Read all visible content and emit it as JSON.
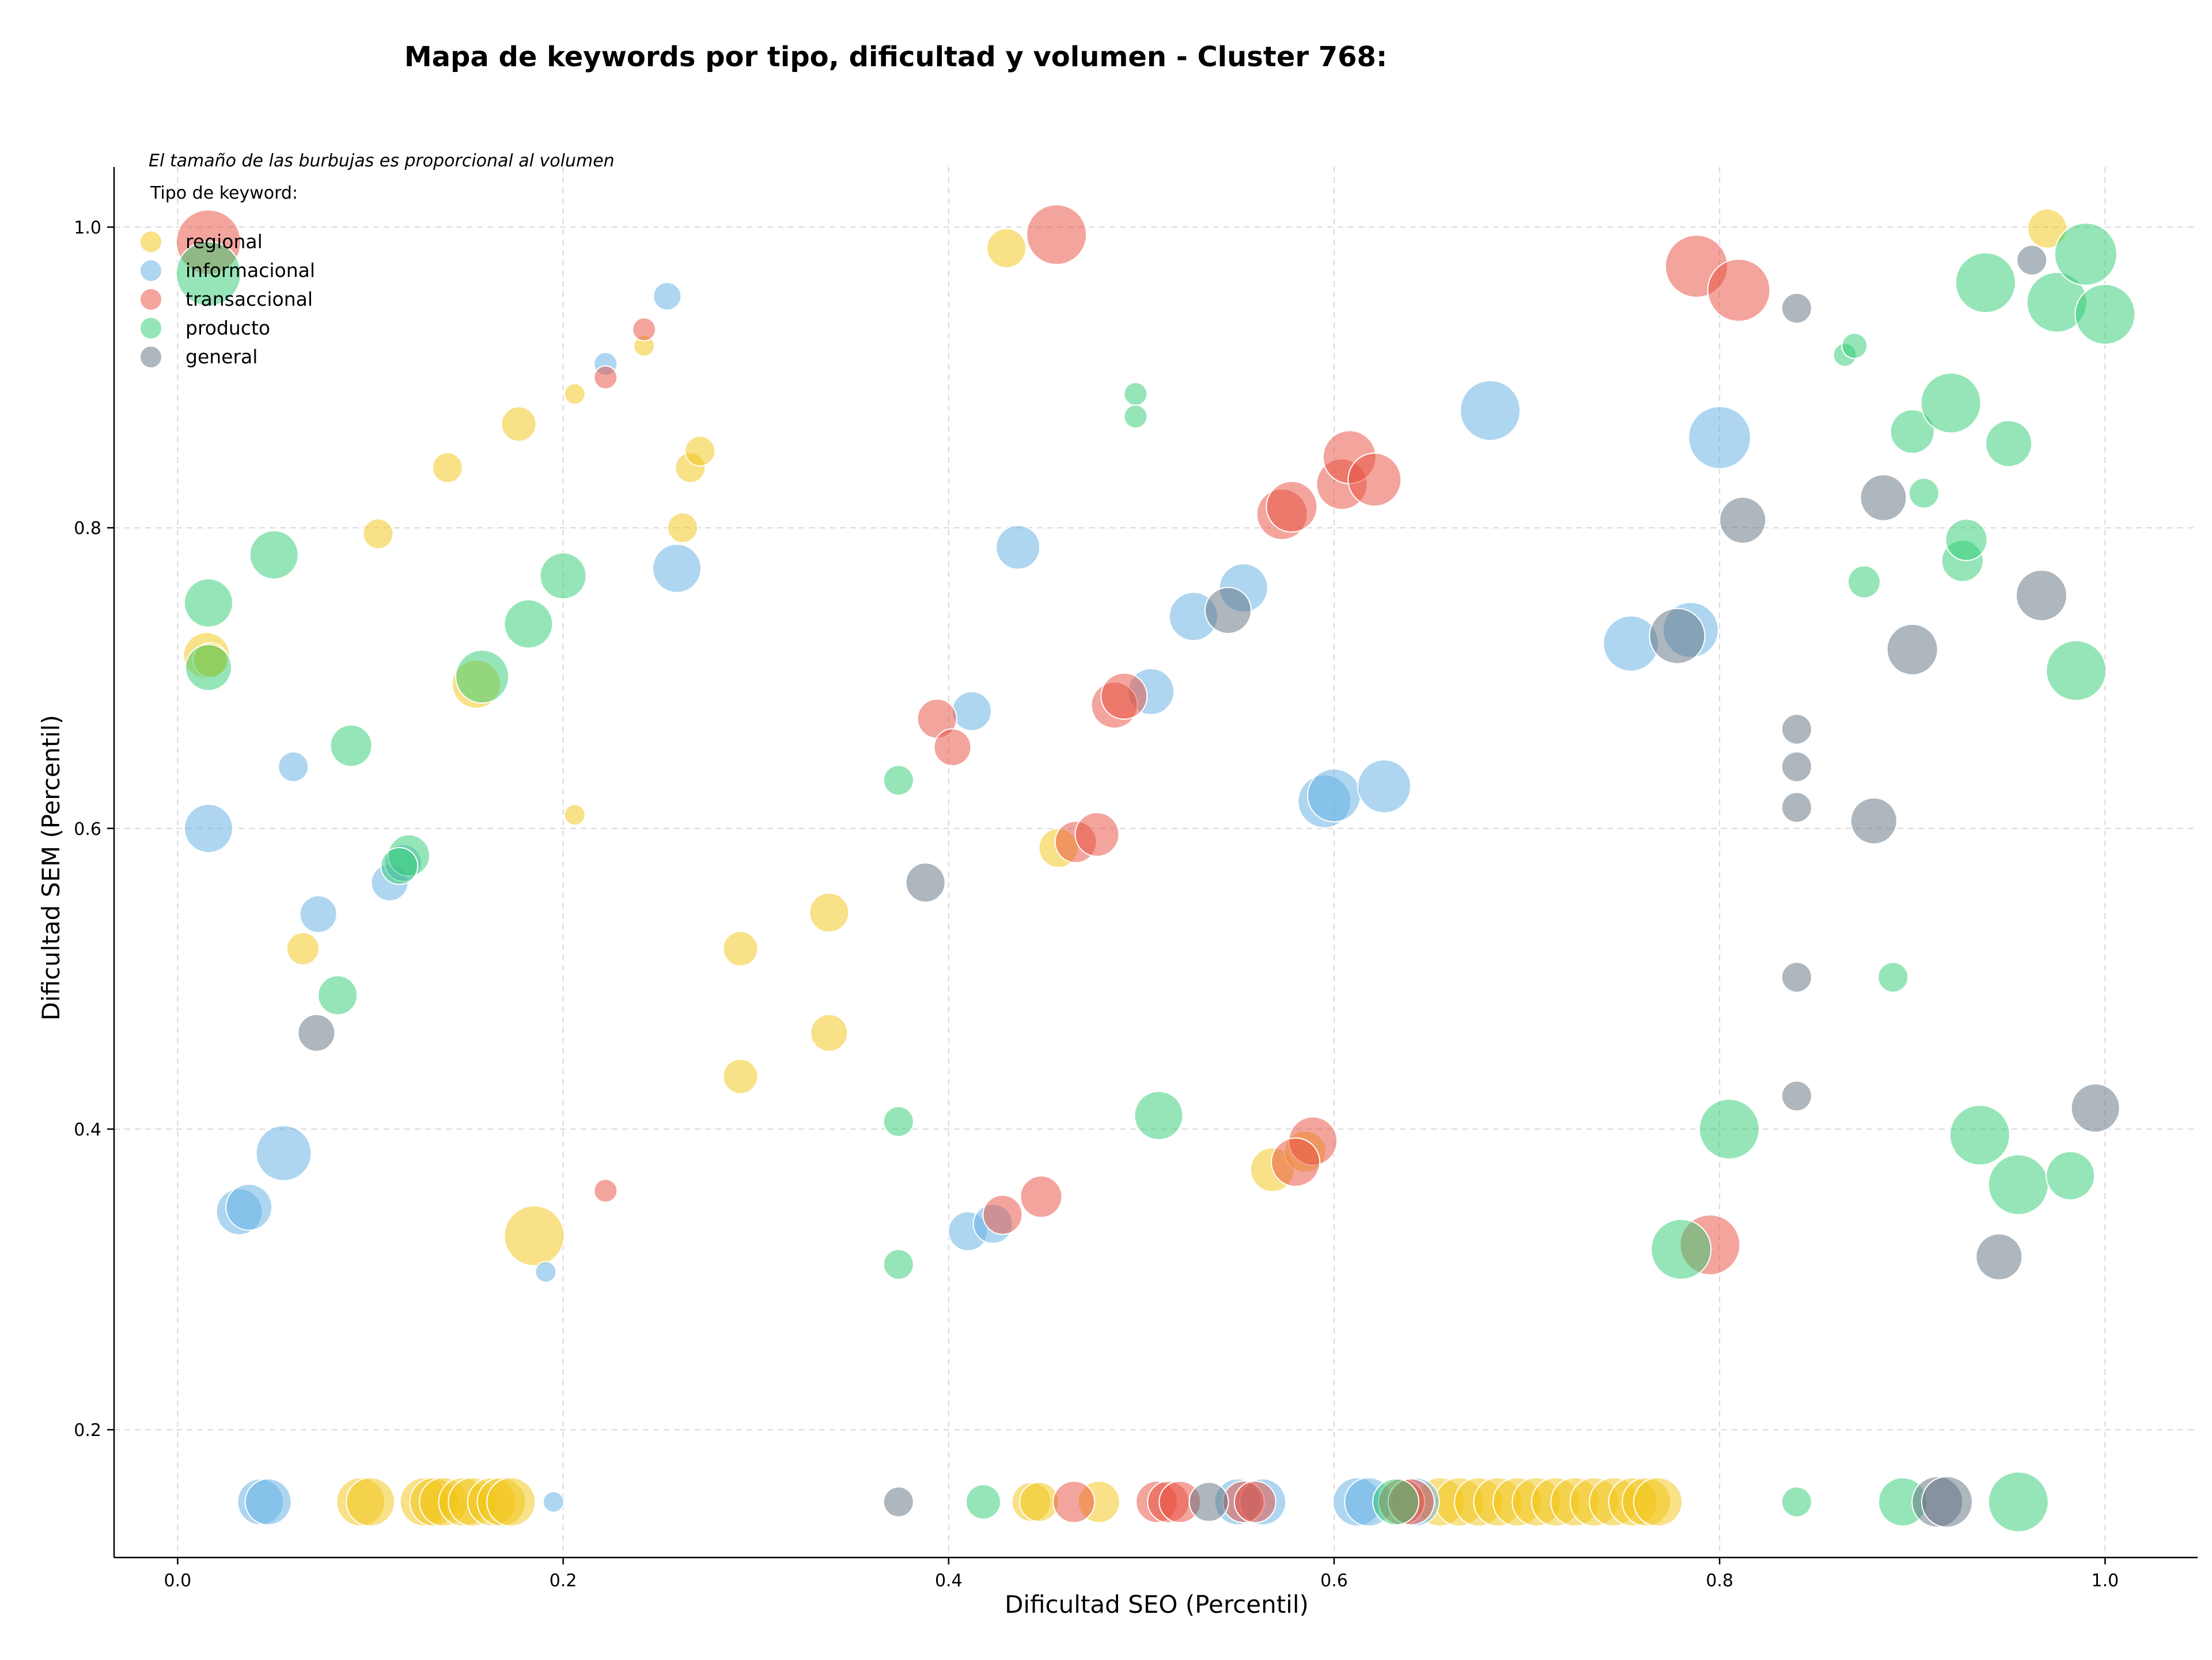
{
  "chart_data": {
    "type": "scatter",
    "title": "Mapa de keywords por tipo, dificultad y volumen - Cluster 768:",
    "xlabel": "Dificultad SEO (Percentil)",
    "ylabel": "Dificultad SEM (Percentil)",
    "xlim": [
      -0.033,
      1.048
    ],
    "ylim": [
      0.115,
      1.04
    ],
    "xticks": [
      "0.0",
      "0.2",
      "0.4",
      "0.6",
      "0.8",
      "1.0"
    ],
    "yticks": [
      "0.2",
      "0.4",
      "0.6",
      "0.8",
      "1.0"
    ],
    "grid": true,
    "note": "El tamaño de las burbujas es proporcional al volumen",
    "legend": {
      "title": "Tipo de keyword:",
      "placement": "top-left"
    },
    "series": [
      {
        "name": "regional",
        "color": "#f1c40f",
        "points": [
          [
            0.015,
            0.715,
            40
          ],
          [
            0.017,
            0.712,
            30
          ],
          [
            0.065,
            0.52,
            28
          ],
          [
            0.104,
            0.796,
            26
          ],
          [
            0.14,
            0.84,
            26
          ],
          [
            0.177,
            0.869,
            30
          ],
          [
            0.155,
            0.696,
            42
          ],
          [
            0.185,
            0.329,
            52
          ],
          [
            0.206,
            0.889,
            18
          ],
          [
            0.206,
            0.609,
            18
          ],
          [
            0.242,
            0.921,
            18
          ],
          [
            0.262,
            0.8,
            26
          ],
          [
            0.266,
            0.84,
            26
          ],
          [
            0.271,
            0.851,
            26
          ],
          [
            0.43,
            0.986,
            34
          ],
          [
            0.457,
            0.587,
            34
          ],
          [
            0.568,
            0.373,
            38
          ],
          [
            0.585,
            0.385,
            36
          ],
          [
            0.97,
            0.999,
            34
          ],
          [
            0.095,
            0.152,
            42
          ],
          [
            0.1,
            0.152,
            42
          ],
          [
            0.128,
            0.152,
            42
          ],
          [
            0.133,
            0.152,
            42
          ],
          [
            0.138,
            0.152,
            42
          ],
          [
            0.148,
            0.152,
            42
          ],
          [
            0.153,
            0.152,
            42
          ],
          [
            0.163,
            0.152,
            42
          ],
          [
            0.168,
            0.152,
            42
          ],
          [
            0.173,
            0.152,
            42
          ],
          [
            0.443,
            0.152,
            34
          ],
          [
            0.447,
            0.152,
            34
          ],
          [
            0.478,
            0.152,
            36
          ],
          [
            0.655,
            0.152,
            42
          ],
          [
            0.665,
            0.152,
            42
          ],
          [
            0.675,
            0.152,
            42
          ],
          [
            0.685,
            0.152,
            42
          ],
          [
            0.695,
            0.152,
            42
          ],
          [
            0.705,
            0.152,
            42
          ],
          [
            0.715,
            0.152,
            42
          ],
          [
            0.725,
            0.152,
            42
          ],
          [
            0.735,
            0.152,
            42
          ],
          [
            0.745,
            0.152,
            42
          ],
          [
            0.755,
            0.152,
            42
          ],
          [
            0.762,
            0.152,
            42
          ],
          [
            0.768,
            0.152,
            42
          ],
          [
            0.338,
            0.544,
            34
          ],
          [
            0.292,
            0.435,
            30
          ],
          [
            0.292,
            0.52,
            30
          ],
          [
            0.338,
            0.464,
            32
          ]
        ]
      },
      {
        "name": "informacional",
        "color": "#5dade2",
        "points": [
          [
            0.016,
            0.6,
            42
          ],
          [
            0.032,
            0.345,
            40
          ],
          [
            0.037,
            0.348,
            40
          ],
          [
            0.055,
            0.384,
            48
          ],
          [
            0.06,
            0.641,
            26
          ],
          [
            0.073,
            0.543,
            32
          ],
          [
            0.11,
            0.564,
            32
          ],
          [
            0.117,
            0.577,
            32
          ],
          [
            0.191,
            0.305,
            18
          ],
          [
            0.222,
            0.909,
            20
          ],
          [
            0.254,
            0.954,
            24
          ],
          [
            0.259,
            0.773,
            42
          ],
          [
            0.41,
            0.332,
            34
          ],
          [
            0.412,
            0.678,
            34
          ],
          [
            0.423,
            0.337,
            34
          ],
          [
            0.436,
            0.787,
            38
          ],
          [
            0.505,
            0.691,
            40
          ],
          [
            0.527,
            0.741,
            42
          ],
          [
            0.553,
            0.76,
            42
          ],
          [
            0.595,
            0.618,
            46
          ],
          [
            0.6,
            0.622,
            46
          ],
          [
            0.626,
            0.628,
            46
          ],
          [
            0.681,
            0.878,
            52
          ],
          [
            0.754,
            0.723,
            48
          ],
          [
            0.785,
            0.732,
            48
          ],
          [
            0.8,
            0.86,
            54
          ],
          [
            0.043,
            0.152,
            40
          ],
          [
            0.047,
            0.152,
            40
          ],
          [
            0.195,
            0.152,
            18
          ],
          [
            0.55,
            0.152,
            40
          ],
          [
            0.563,
            0.152,
            40
          ],
          [
            0.612,
            0.152,
            42
          ],
          [
            0.618,
            0.152,
            42
          ],
          [
            0.642,
            0.152,
            42
          ]
        ]
      },
      {
        "name": "transaccional",
        "color": "#e74c3c",
        "points": [
          [
            0.016,
            0.99,
            56
          ],
          [
            0.222,
            0.359,
            20
          ],
          [
            0.222,
            0.9,
            20
          ],
          [
            0.242,
            0.932,
            20
          ],
          [
            0.394,
            0.673,
            34
          ],
          [
            0.402,
            0.654,
            32
          ],
          [
            0.428,
            0.343,
            34
          ],
          [
            0.448,
            0.355,
            36
          ],
          [
            0.456,
            0.995,
            52
          ],
          [
            0.466,
            0.591,
            36
          ],
          [
            0.477,
            0.596,
            38
          ],
          [
            0.486,
            0.682,
            40
          ],
          [
            0.491,
            0.688,
            40
          ],
          [
            0.573,
            0.809,
            44
          ],
          [
            0.578,
            0.814,
            44
          ],
          [
            0.589,
            0.392,
            42
          ],
          [
            0.58,
            0.378,
            42
          ],
          [
            0.604,
            0.829,
            44
          ],
          [
            0.608,
            0.847,
            46
          ],
          [
            0.621,
            0.832,
            46
          ],
          [
            0.788,
            0.974,
            54
          ],
          [
            0.81,
            0.958,
            54
          ],
          [
            0.795,
            0.323,
            52
          ],
          [
            0.465,
            0.152,
            36
          ],
          [
            0.508,
            0.152,
            36
          ],
          [
            0.514,
            0.152,
            36
          ],
          [
            0.52,
            0.152,
            36
          ],
          [
            0.553,
            0.152,
            36
          ],
          [
            0.559,
            0.152,
            36
          ],
          [
            0.635,
            0.152,
            40
          ],
          [
            0.64,
            0.152,
            40
          ]
        ]
      },
      {
        "name": "producto",
        "color": "#2ecc71",
        "points": [
          [
            0.016,
            0.969,
            56
          ],
          [
            0.016,
            0.75,
            42
          ],
          [
            0.016,
            0.707,
            40
          ],
          [
            0.05,
            0.782,
            42
          ],
          [
            0.09,
            0.655,
            36
          ],
          [
            0.083,
            0.489,
            34
          ],
          [
            0.12,
            0.582,
            36
          ],
          [
            0.115,
            0.575,
            32
          ],
          [
            0.158,
            0.701,
            46
          ],
          [
            0.182,
            0.736,
            42
          ],
          [
            0.2,
            0.768,
            40
          ],
          [
            0.374,
            0.632,
            26
          ],
          [
            0.374,
            0.405,
            26
          ],
          [
            0.374,
            0.31,
            26
          ],
          [
            0.497,
            0.889,
            20
          ],
          [
            0.497,
            0.874,
            20
          ],
          [
            0.509,
            0.409,
            42
          ],
          [
            0.78,
            0.32,
            52
          ],
          [
            0.805,
            0.4,
            52
          ],
          [
            0.865,
            0.915,
            20
          ],
          [
            0.87,
            0.921,
            22
          ],
          [
            0.875,
            0.764,
            28
          ],
          [
            0.89,
            0.501,
            26
          ],
          [
            0.9,
            0.864,
            38
          ],
          [
            0.906,
            0.823,
            26
          ],
          [
            0.92,
            0.883,
            52
          ],
          [
            0.926,
            0.778,
            36
          ],
          [
            0.928,
            0.792,
            36
          ],
          [
            0.935,
            0.396,
            52
          ],
          [
            0.938,
            0.963,
            52
          ],
          [
            0.95,
            0.856,
            40
          ],
          [
            0.955,
            0.363,
            52
          ],
          [
            0.975,
            0.95,
            52
          ],
          [
            0.982,
            0.369,
            42
          ],
          [
            0.985,
            0.705,
            52
          ],
          [
            0.99,
            0.982,
            54
          ],
          [
            1.0,
            0.942,
            52
          ],
          [
            0.418,
            0.152,
            30
          ],
          [
            0.632,
            0.152,
            40
          ],
          [
            0.84,
            0.152,
            26
          ],
          [
            0.895,
            0.152,
            42
          ],
          [
            0.955,
            0.152,
            52
          ]
        ]
      },
      {
        "name": "general",
        "color": "#5d6d7e",
        "points": [
          [
            0.072,
            0.464,
            32
          ],
          [
            0.388,
            0.564,
            34
          ],
          [
            0.545,
            0.745,
            40
          ],
          [
            0.778,
            0.728,
            48
          ],
          [
            0.812,
            0.805,
            40
          ],
          [
            0.84,
            0.946,
            26
          ],
          [
            0.84,
            0.666,
            26
          ],
          [
            0.84,
            0.641,
            26
          ],
          [
            0.84,
            0.614,
            26
          ],
          [
            0.84,
            0.501,
            26
          ],
          [
            0.84,
            0.422,
            26
          ],
          [
            0.88,
            0.605,
            40
          ],
          [
            0.885,
            0.82,
            40
          ],
          [
            0.9,
            0.719,
            44
          ],
          [
            0.945,
            0.315,
            40
          ],
          [
            0.962,
            0.978,
            26
          ],
          [
            0.967,
            0.755,
            44
          ],
          [
            0.995,
            0.414,
            42
          ],
          [
            0.374,
            0.152,
            26
          ],
          [
            0.535,
            0.152,
            34
          ],
          [
            0.913,
            0.152,
            44
          ],
          [
            0.918,
            0.152,
            44
          ]
        ]
      }
    ]
  }
}
